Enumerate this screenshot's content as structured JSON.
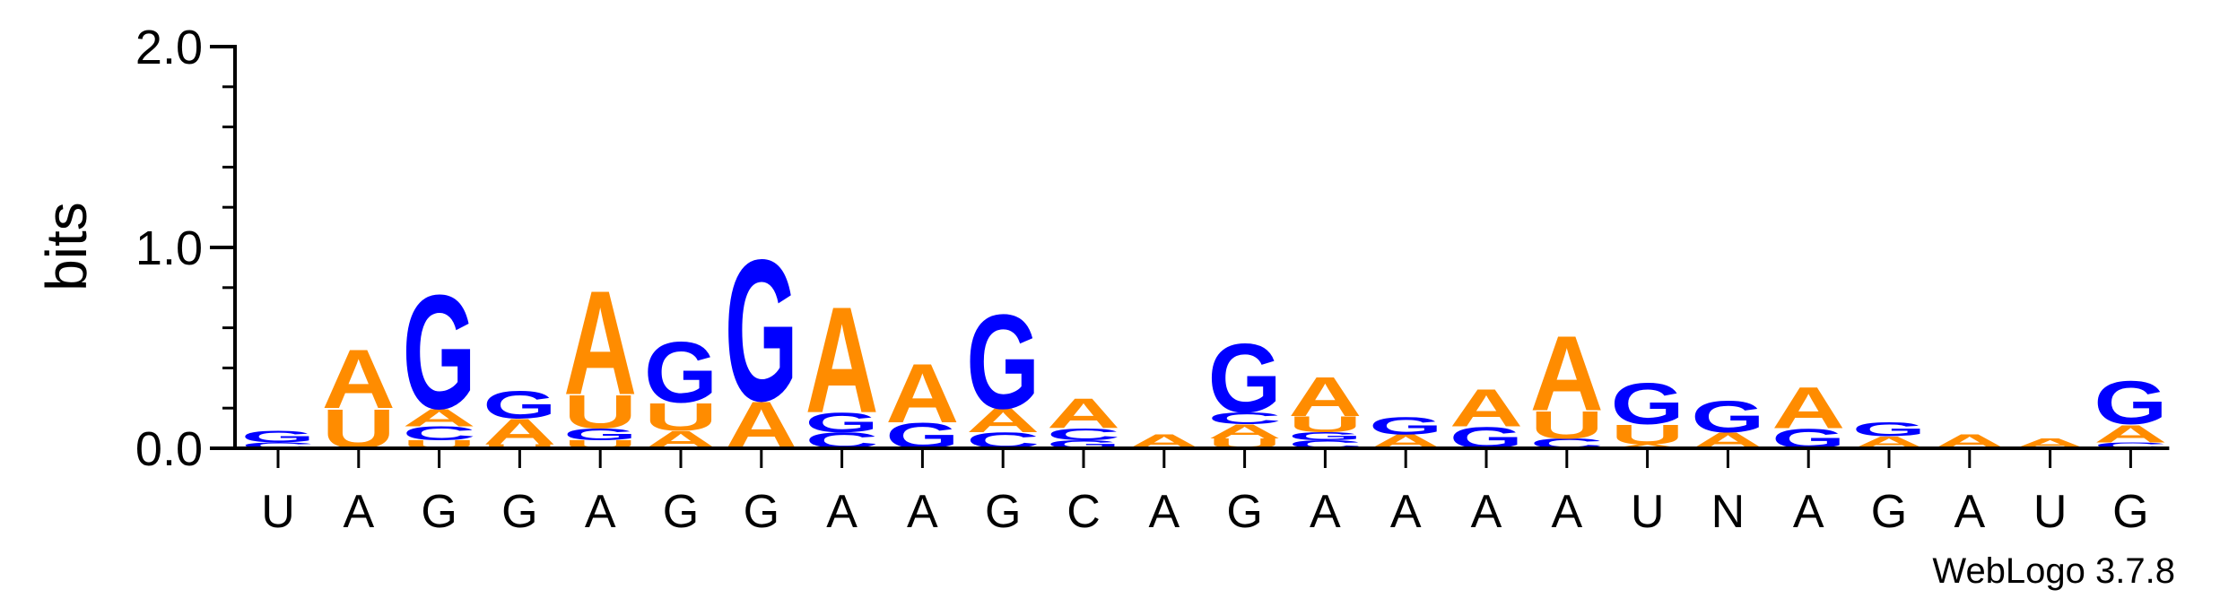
{
  "chart_data": {
    "type": "sequence-logo",
    "ylabel": "bits",
    "ylim": [
      0,
      2.0
    ],
    "yticks": [
      "0.0",
      "1.0",
      "2.0"
    ],
    "credit": "WebLogo 3.7.8",
    "colors": {
      "A": "#ff8c00",
      "U": "#ff8c00",
      "G": "#0000ff",
      "C": "#0000ff"
    },
    "positions": [
      {
        "label": "U",
        "stack": [
          {
            "l": "C",
            "h": 0.03
          },
          {
            "l": "G",
            "h": 0.06
          }
        ]
      },
      {
        "label": "A",
        "stack": [
          {
            "l": "U",
            "h": 0.2
          },
          {
            "l": "A",
            "h": 0.3
          }
        ]
      },
      {
        "label": "G",
        "stack": [
          {
            "l": "U",
            "h": 0.04
          },
          {
            "l": "C",
            "h": 0.07
          },
          {
            "l": "A",
            "h": 0.09
          },
          {
            "l": "G",
            "h": 0.58
          }
        ]
      },
      {
        "label": "G",
        "stack": [
          {
            "l": "U",
            "h": 0.02
          },
          {
            "l": "A",
            "h": 0.13
          },
          {
            "l": "G",
            "h": 0.14
          }
        ]
      },
      {
        "label": "A",
        "stack": [
          {
            "l": "U",
            "h": 0.04
          },
          {
            "l": "G",
            "h": 0.06
          },
          {
            "l": "U",
            "h": 0.17
          },
          {
            "l": "A",
            "h": 0.53
          }
        ]
      },
      {
        "label": "G",
        "stack": [
          {
            "l": "A",
            "h": 0.09
          },
          {
            "l": "U",
            "h": 0.14
          },
          {
            "l": "G",
            "h": 0.31
          }
        ]
      },
      {
        "label": "G",
        "stack": [
          {
            "l": "A",
            "h": 0.24
          },
          {
            "l": "G",
            "h": 0.72
          }
        ]
      },
      {
        "label": "A",
        "stack": [
          {
            "l": "C",
            "h": 0.08
          },
          {
            "l": "G",
            "h": 0.1
          },
          {
            "l": "A",
            "h": 0.54
          }
        ]
      },
      {
        "label": "A",
        "stack": [
          {
            "l": "G",
            "h": 0.13
          },
          {
            "l": "A",
            "h": 0.3
          }
        ]
      },
      {
        "label": "G",
        "stack": [
          {
            "l": "C",
            "h": 0.08
          },
          {
            "l": "A",
            "h": 0.12
          },
          {
            "l": "G",
            "h": 0.48
          }
        ]
      },
      {
        "label": "C",
        "stack": [
          {
            "l": "G",
            "h": 0.04
          },
          {
            "l": "C",
            "h": 0.06
          },
          {
            "l": "A",
            "h": 0.15
          }
        ]
      },
      {
        "label": "A",
        "stack": [
          {
            "l": "A",
            "h": 0.07
          }
        ]
      },
      {
        "label": "G",
        "stack": [
          {
            "l": "U",
            "h": 0.05
          },
          {
            "l": "A",
            "h": 0.07
          },
          {
            "l": "C",
            "h": 0.06
          },
          {
            "l": "G",
            "h": 0.35
          }
        ]
      },
      {
        "label": "A",
        "stack": [
          {
            "l": "C",
            "h": 0.04
          },
          {
            "l": "G",
            "h": 0.04
          },
          {
            "l": "U",
            "h": 0.08
          },
          {
            "l": "A",
            "h": 0.2
          }
        ]
      },
      {
        "label": "A",
        "stack": [
          {
            "l": "A",
            "h": 0.07
          },
          {
            "l": "G",
            "h": 0.09
          }
        ]
      },
      {
        "label": "A",
        "stack": [
          {
            "l": "G",
            "h": 0.11
          },
          {
            "l": "A",
            "h": 0.19
          }
        ]
      },
      {
        "label": "A",
        "stack": [
          {
            "l": "C",
            "h": 0.05
          },
          {
            "l": "U",
            "h": 0.14
          },
          {
            "l": "A",
            "h": 0.38
          }
        ]
      },
      {
        "label": "U",
        "stack": [
          {
            "l": "A",
            "h": 0.02
          },
          {
            "l": "U",
            "h": 0.1
          },
          {
            "l": "G",
            "h": 0.21
          }
        ]
      },
      {
        "label": "N",
        "stack": [
          {
            "l": "A",
            "h": 0.08
          },
          {
            "l": "G",
            "h": 0.16
          }
        ]
      },
      {
        "label": "A",
        "stack": [
          {
            "l": "G",
            "h": 0.1
          },
          {
            "l": "A",
            "h": 0.21
          }
        ]
      },
      {
        "label": "G",
        "stack": [
          {
            "l": "A",
            "h": 0.06
          },
          {
            "l": "G",
            "h": 0.07
          }
        ]
      },
      {
        "label": "A",
        "stack": [
          {
            "l": "A",
            "h": 0.07
          }
        ]
      },
      {
        "label": "U",
        "stack": [
          {
            "l": "A",
            "h": 0.05
          }
        ]
      },
      {
        "label": "G",
        "stack": [
          {
            "l": "C",
            "h": 0.03
          },
          {
            "l": "A",
            "h": 0.09
          },
          {
            "l": "G",
            "h": 0.22
          }
        ]
      }
    ]
  }
}
